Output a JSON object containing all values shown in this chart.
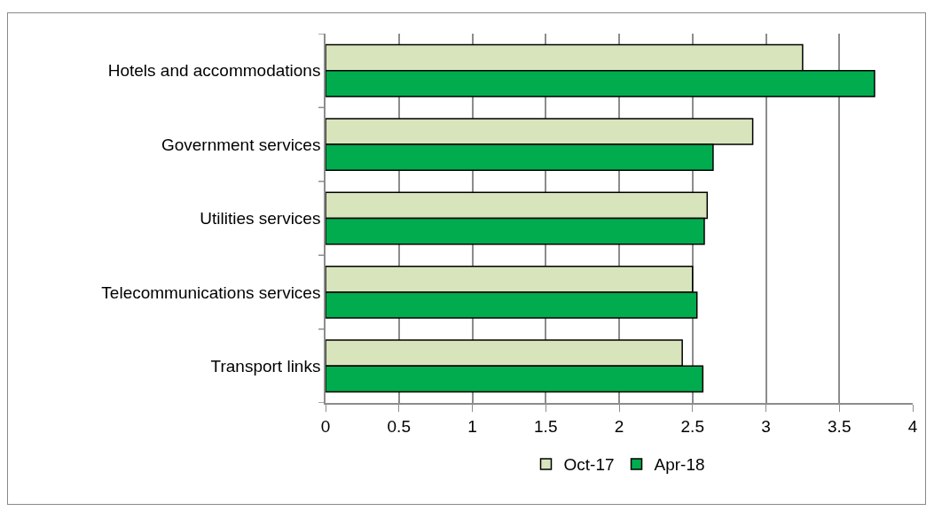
{
  "chart_data": {
    "type": "bar",
    "orientation": "horizontal",
    "categories": [
      "Hotels and accommodations",
      "Government services",
      "Utilities services",
      "Telecommunications services",
      "Transport links"
    ],
    "series": [
      {
        "name": "Oct-17",
        "color": "#d8e4bc",
        "values": [
          3.25,
          2.91,
          2.6,
          2.5,
          2.43
        ]
      },
      {
        "name": "Apr-18",
        "color": "#00ac4e",
        "values": [
          3.74,
          2.64,
          2.58,
          2.53,
          2.57
        ]
      }
    ],
    "xlim": [
      0,
      4
    ],
    "xticks": [
      0,
      0.5,
      1,
      1.5,
      2,
      2.5,
      3,
      3.5,
      4
    ],
    "grid": "x",
    "legend": "bottom"
  }
}
